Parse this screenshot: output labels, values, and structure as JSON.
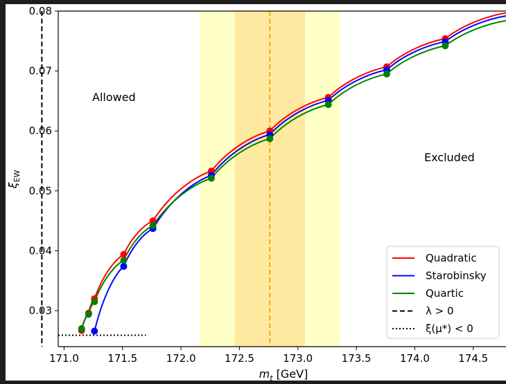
{
  "chart_data": {
    "type": "line",
    "xlabel": "m_t [GeV]",
    "ylabel": "ξ_EW",
    "xlim": [
      170.95,
      174.78
    ],
    "ylim": [
      0.024,
      0.08
    ],
    "x_ticks": [
      "171.0",
      "171.5",
      "172.0",
      "172.5",
      "173.0",
      "173.5",
      "174.0",
      "174.5"
    ],
    "y_ticks": [
      "0.03",
      "0.04",
      "0.05",
      "0.06",
      "0.07",
      "0.08"
    ],
    "annotations": {
      "allowed": "Allowed",
      "excluded": "Excluded"
    },
    "bands": [
      {
        "from": 172.16,
        "to": 173.36,
        "color": "#ffffc8"
      },
      {
        "from": 172.46,
        "to": 173.06,
        "color": "#ffe9a0"
      }
    ],
    "central_line": {
      "x": 172.76,
      "color": "#ffa500"
    },
    "lambda_line": {
      "x": 170.81,
      "label": "λ > 0"
    },
    "xi_line": {
      "y": 0.0259,
      "x_from": 170.95,
      "x_to": 171.7,
      "label": "ξ(μ*) < 0"
    },
    "series": [
      {
        "name": "Quadratic",
        "color": "#ff0000",
        "x": [
          171.15,
          171.21,
          171.26,
          171.51,
          171.76,
          172.26,
          172.76,
          173.26,
          173.76,
          174.26,
          174.78
        ],
        "y": [
          0.0267,
          0.0296,
          0.032,
          0.0394,
          0.045,
          0.0533,
          0.06,
          0.0656,
          0.0707,
          0.0754,
          0.0797
        ]
      },
      {
        "name": "Starobinsky",
        "color": "#0000ff",
        "x": [
          171.26,
          171.51,
          171.76,
          172.26,
          172.76,
          173.26,
          173.76,
          174.26,
          174.78
        ],
        "y": [
          0.0266,
          0.0374,
          0.0437,
          0.0526,
          0.0594,
          0.0651,
          0.0702,
          0.0749,
          0.0792
        ]
      },
      {
        "name": "Quartic",
        "color": "#008000",
        "x": [
          171.15,
          171.21,
          171.26,
          171.51,
          171.76,
          172.26,
          172.76,
          173.26,
          173.76,
          174.26,
          174.78
        ],
        "y": [
          0.027,
          0.0294,
          0.0315,
          0.0384,
          0.0442,
          0.0521,
          0.0587,
          0.0644,
          0.0695,
          0.0742,
          0.0784
        ]
      }
    ],
    "legend": {
      "placement": "lower-right",
      "entries": [
        "Quadratic",
        "Starobinsky",
        "Quartic",
        "λ > 0",
        "ξ(μ*) < 0"
      ]
    }
  }
}
